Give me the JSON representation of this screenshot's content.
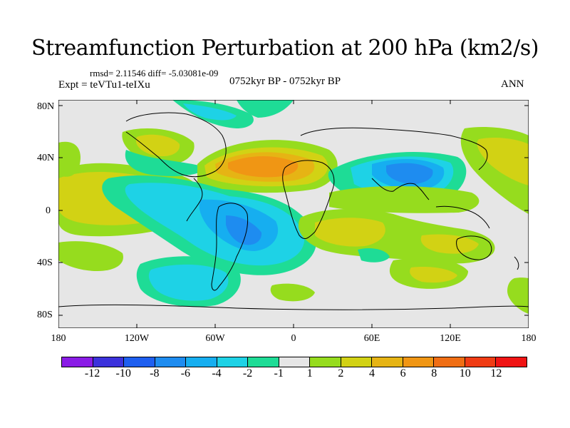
{
  "title": "Streamfunction Perturbation at 200 hPa (km2/s)",
  "stats": "rmsd= 2.11546 diff= -5.03081e-09",
  "experiment": "Expt = teVTu1-teIXu",
  "period": "0752kyr BP - 0752kyr BP",
  "season": "ANN",
  "lat_labels": [
    "80N",
    "40N",
    "0",
    "40S",
    "80S"
  ],
  "lon_labels": [
    "180",
    "120W",
    "60W",
    "0",
    "60E",
    "120E",
    "180"
  ],
  "colorbar": {
    "labels": [
      "-12",
      "-10",
      "-8",
      "-6",
      "-4",
      "-2",
      "-1",
      "1",
      "2",
      "4",
      "6",
      "8",
      "10",
      "12"
    ],
    "colors": [
      "#8a1ce6",
      "#3c32dc",
      "#1e5ff0",
      "#1e8cf0",
      "#16aef0",
      "#1ed2e6",
      "#1edc96",
      "#e6e6e6",
      "#96dc1e",
      "#d2d214",
      "#e6b414",
      "#f09614",
      "#f06e14",
      "#f03c14",
      "#f01414"
    ]
  },
  "map_data": {
    "type": "contour-fill",
    "variable": "streamfunction perturbation",
    "units": "km2/s",
    "level": "200 hPa",
    "lon_range": [
      -180,
      180
    ],
    "lat_range": [
      -90,
      90
    ],
    "features": [
      {
        "name": "North Atlantic high",
        "lon": -20,
        "lat": 32,
        "value": 7
      },
      {
        "name": "Central Asia low",
        "lon": 85,
        "lat": 28,
        "value": -7
      },
      {
        "name": "South Atlantic low",
        "lon": -30,
        "lat": -20,
        "value": -5
      },
      {
        "name": "South Pacific low",
        "lon": -100,
        "lat": -48,
        "value": -4
      },
      {
        "name": "Tropical East Pacific high",
        "lon": -145,
        "lat": 5,
        "value": 3
      },
      {
        "name": "Western Pacific high",
        "lon": 150,
        "lat": 32,
        "value": 3
      },
      {
        "name": "Indian Ocean high",
        "lon": 70,
        "lat": -15,
        "value": 3
      }
    ]
  }
}
